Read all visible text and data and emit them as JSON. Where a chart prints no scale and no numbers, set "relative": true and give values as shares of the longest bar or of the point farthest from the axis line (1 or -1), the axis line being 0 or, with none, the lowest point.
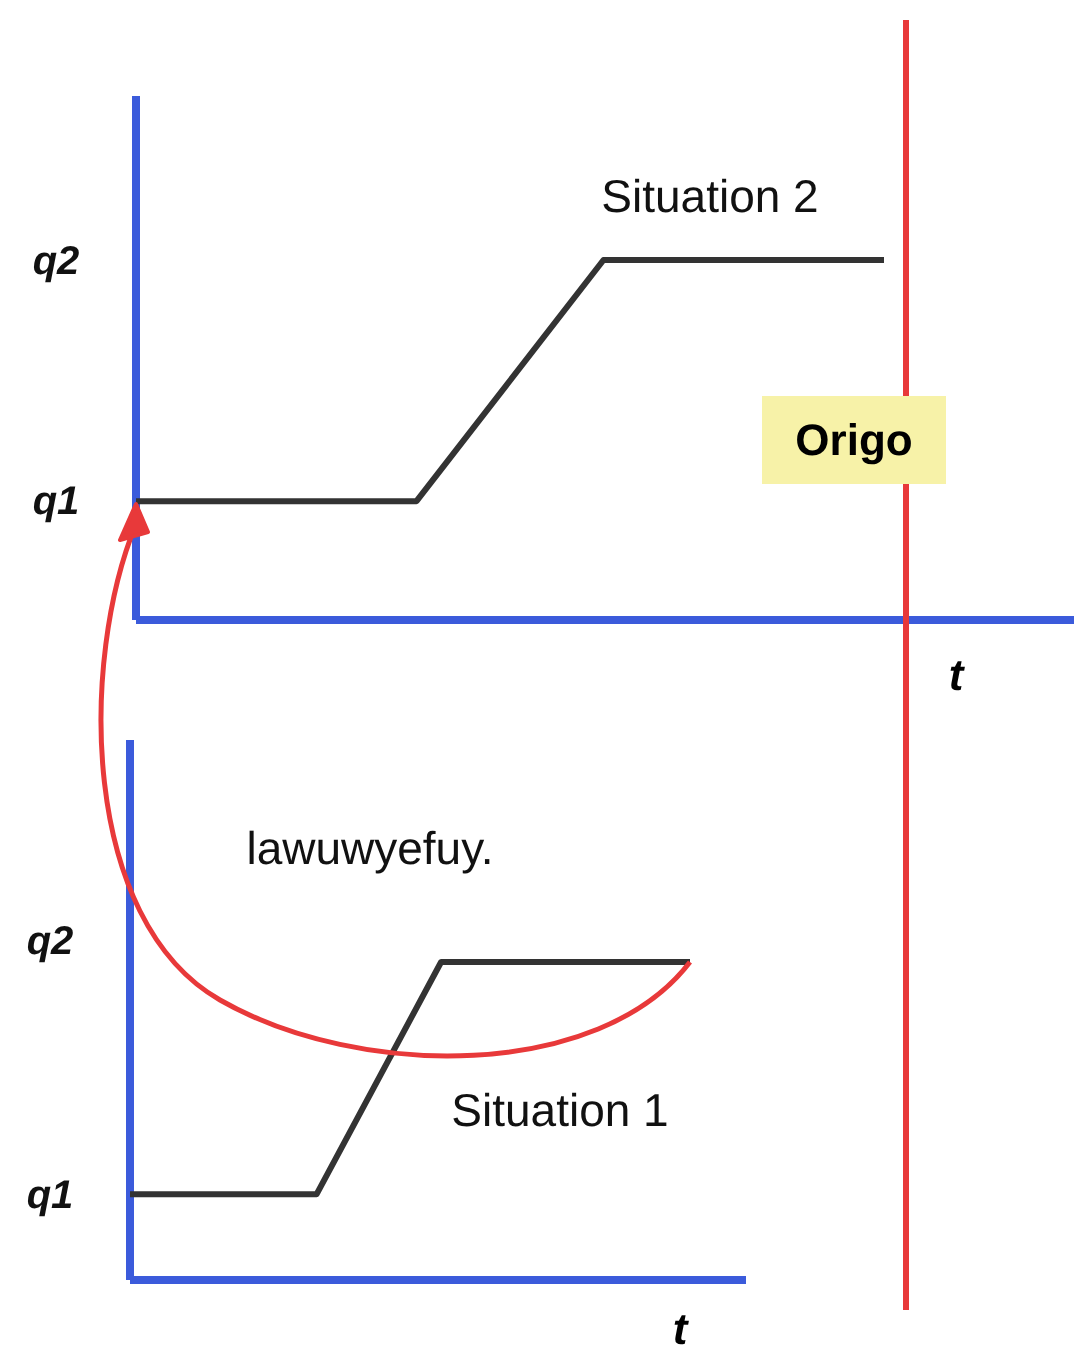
{
  "chart_data": [
    {
      "type": "line",
      "relative": true,
      "xlabel": "t",
      "categories": [
        null,
        null,
        null,
        null,
        null,
        null,
        null,
        null,
        null
      ],
      "series": [
        {
          "color": "#333333",
          "values": [
            0.33,
            null,
            null,
            0.33,
            null,
            1,
            null,
            null,
            1
          ]
        }
      ],
      "annotations": [
        "q2",
        "q1",
        "Situation 2"
      ],
      "ref_lines": [
        {
          "axis": "x",
          "label": "Origo",
          "color": "#e8393a"
        }
      ]
    },
    {
      "type": "line",
      "relative": true,
      "xlabel": "t",
      "categories": [
        null,
        null,
        null,
        null,
        null,
        null,
        null,
        null,
        null,
        null
      ],
      "series": [
        {
          "color": "#333333",
          "values": [
            0.27,
            null,
            null,
            0.27,
            null,
            1,
            null,
            null,
            null,
            1
          ]
        }
      ],
      "annotations": [
        "q2",
        "q1",
        "lawuwyefuy.",
        "Situation 1"
      ]
    }
  ]
}
